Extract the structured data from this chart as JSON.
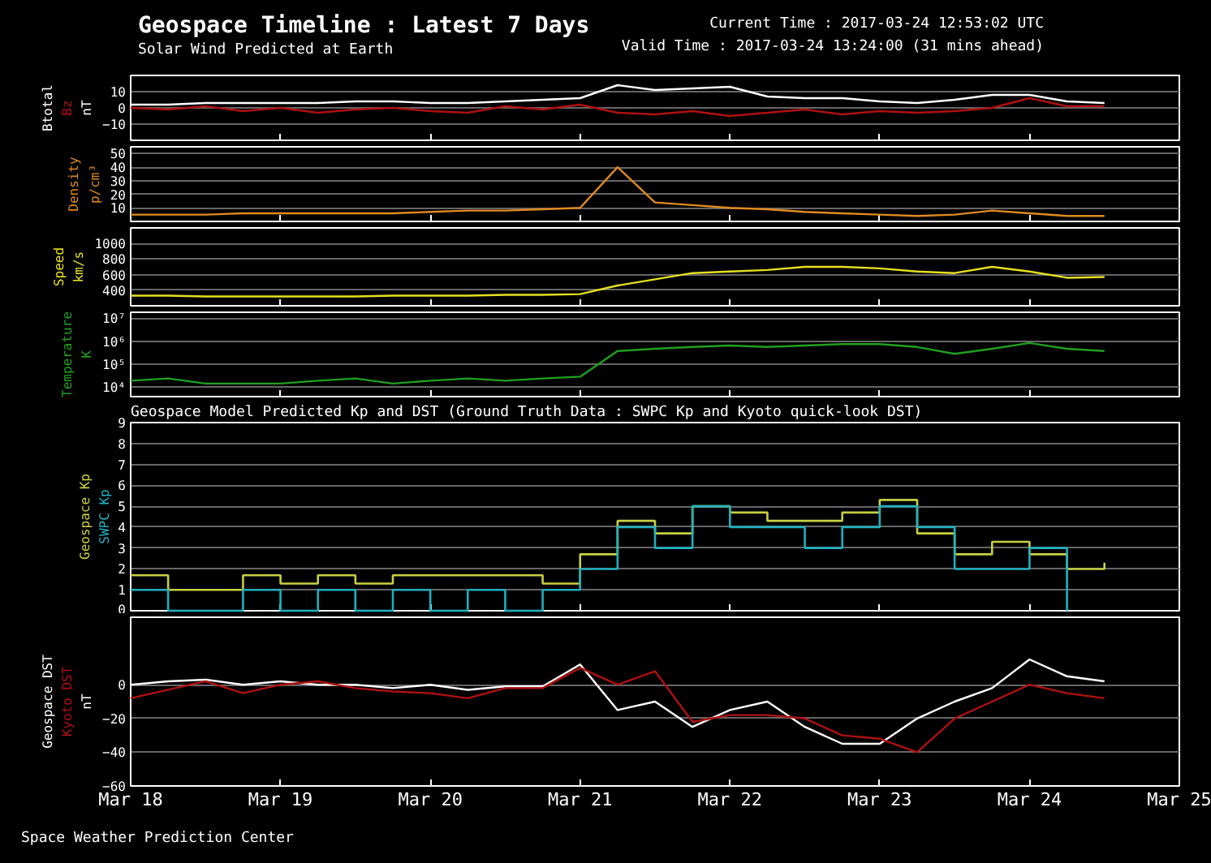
{
  "chart_data": [
    {
      "type": "line",
      "title": "Geospace Timeline : Latest 7 Days",
      "subtitle": "Solar Wind Predicted at Earth",
      "annotations": [
        "Current Time : 2017-03-24 12:53:02 UTC",
        "Valid Time : 2017-03-24 13:24:00 (31 mins ahead)"
      ],
      "ylabel": "nT",
      "tick_labels": "y",
      "grid": "y",
      "categories": [
        null,
        null,
        null,
        null,
        null,
        null,
        null,
        null,
        null,
        null,
        null,
        null,
        null,
        null,
        null,
        null,
        null,
        null,
        null,
        null,
        null,
        null,
        null,
        null,
        null,
        null,
        null
      ],
      "ylim": [
        -20,
        20
      ],
      "yticks": [
        -10,
        0,
        10
      ],
      "series": [
        {
          "name": "Btotal",
          "color": "#ffffff",
          "values": [
            2,
            2,
            3,
            3,
            3,
            3,
            4,
            4,
            3,
            3,
            4,
            5,
            6,
            14,
            11,
            12,
            13,
            7,
            6,
            6,
            4,
            3,
            5,
            8,
            8,
            4,
            3
          ]
        },
        {
          "name": "Bz",
          "color": "#b01010",
          "values": [
            0,
            -1,
            1,
            -2,
            0,
            -3,
            -1,
            0,
            -2,
            -3,
            1,
            -1,
            2,
            -3,
            -4,
            -2,
            -5,
            -3,
            -1,
            -4,
            -2,
            -3,
            -2,
            0,
            6,
            1,
            1
          ]
        }
      ]
    },
    {
      "type": "line",
      "ylabel": "p/cm³",
      "tick_labels": "y",
      "grid": "y",
      "categories": [
        null,
        null,
        null,
        null,
        null,
        null,
        null,
        null,
        null,
        null,
        null,
        null,
        null,
        null,
        null,
        null,
        null,
        null,
        null,
        null,
        null,
        null,
        null,
        null,
        null,
        null,
        null
      ],
      "ylim": [
        0,
        55
      ],
      "yticks": [
        10,
        20,
        30,
        40,
        50
      ],
      "series": [
        {
          "name": "Density",
          "color": "#e08a1e",
          "values": [
            5,
            5,
            5,
            6,
            6,
            6,
            6,
            6,
            7,
            8,
            8,
            9,
            10,
            40,
            14,
            12,
            10,
            9,
            7,
            6,
            5,
            4,
            5,
            8,
            6,
            4,
            4
          ]
        }
      ]
    },
    {
      "type": "line",
      "ylabel": "km/s",
      "tick_labels": "y",
      "grid": "y",
      "categories": [
        null,
        null,
        null,
        null,
        null,
        null,
        null,
        null,
        null,
        null,
        null,
        null,
        null,
        null,
        null,
        null,
        null,
        null,
        null,
        null,
        null,
        null,
        null,
        null,
        null,
        null,
        null
      ],
      "ylim": [
        200,
        1200
      ],
      "yticks": [
        400,
        600,
        800,
        1000
      ],
      "series": [
        {
          "name": "Speed",
          "color": "#e6e020",
          "values": [
            330,
            330,
            320,
            320,
            320,
            320,
            320,
            330,
            330,
            330,
            340,
            340,
            350,
            460,
            540,
            620,
            640,
            660,
            700,
            700,
            680,
            640,
            620,
            700,
            640,
            560,
            570
          ]
        }
      ]
    },
    {
      "type": "line",
      "ylabel": "K",
      "tick_labels": "y",
      "grid": "y",
      "log": true,
      "categories": [
        null,
        null,
        null,
        null,
        null,
        null,
        null,
        null,
        null,
        null,
        null,
        null,
        null,
        null,
        null,
        null,
        null,
        null,
        null,
        null,
        null,
        null,
        null,
        null,
        null,
        null,
        null
      ],
      "ylim": [
        4000,
        20000000
      ],
      "yticks": [
        {
          "value": 10000,
          "label": "10⁴"
        },
        {
          "value": 100000,
          "label": "10⁵"
        },
        {
          "value": 1000000,
          "label": "10⁶"
        },
        {
          "value": 10000000,
          "label": "10⁷"
        }
      ],
      "series": [
        {
          "name": "Temperature",
          "color": "#1fa01f",
          "values": [
            20000,
            25000,
            15000,
            15000,
            15000,
            20000,
            25000,
            15000,
            20000,
            25000,
            20000,
            25000,
            30000,
            400000,
            500000,
            600000,
            700000,
            600000,
            700000,
            800000,
            800000,
            600000,
            300000,
            500000,
            900000,
            500000,
            400000
          ]
        }
      ]
    },
    {
      "type": "step",
      "title": "Geospace Model Predicted Kp and DST (Ground Truth Data : SWPC Kp and Kyoto quick-look DST)",
      "tick_labels": "y",
      "grid": "y",
      "categories": [
        null,
        null,
        null,
        null,
        null,
        null,
        null,
        null,
        null,
        null,
        null,
        null,
        null,
        null,
        null,
        null,
        null,
        null,
        null,
        null,
        null,
        null,
        null,
        null,
        null,
        null,
        null
      ],
      "ylim": [
        0,
        9
      ],
      "yticks": [
        0,
        1,
        2,
        3,
        4,
        5,
        6,
        7,
        8,
        9
      ],
      "series": [
        {
          "name": "Geospace Kp",
          "color": "#c8d040",
          "values": [
            1.7,
            1,
            1,
            1.7,
            1.3,
            1.7,
            1.3,
            1.7,
            1.7,
            1.7,
            1.7,
            1.3,
            2.7,
            4.3,
            3.7,
            5,
            4.7,
            4.3,
            4.3,
            4.7,
            5.3,
            3.7,
            2.7,
            3.3,
            2.7,
            2,
            2.3
          ]
        },
        {
          "name": "SWPC Kp",
          "color": "#20b0c0",
          "values": [
            1,
            0,
            0,
            1,
            0,
            1,
            0,
            1,
            0,
            1,
            0,
            1,
            2,
            4,
            3,
            5,
            4,
            4,
            3,
            4,
            5,
            4,
            2,
            2,
            3,
            0,
            null
          ]
        }
      ]
    },
    {
      "type": "line",
      "ylabel": "nT",
      "grid": "y",
      "annotations": [
        "Space Weather Prediction Center"
      ],
      "x": [
        "2017-03-18T00:00",
        "2017-03-18T06:00",
        "2017-03-18T12:00",
        "2017-03-18T18:00",
        "2017-03-19T00:00",
        "2017-03-19T06:00",
        "2017-03-19T12:00",
        "2017-03-19T18:00",
        "2017-03-20T00:00",
        "2017-03-20T06:00",
        "2017-03-20T12:00",
        "2017-03-20T18:00",
        "2017-03-21T00:00",
        "2017-03-21T06:00",
        "2017-03-21T12:00",
        "2017-03-21T18:00",
        "2017-03-22T00:00",
        "2017-03-22T06:00",
        "2017-03-22T12:00",
        "2017-03-22T18:00",
        "2017-03-23T00:00",
        "2017-03-23T06:00",
        "2017-03-23T12:00",
        "2017-03-23T18:00",
        "2017-03-24T00:00",
        "2017-03-24T06:00",
        "2017-03-24T12:00"
      ],
      "xlim": [
        "2017-03-18",
        "2017-03-25"
      ],
      "xticks": [
        {
          "value": "2017-03-18",
          "label": "Mar 18"
        },
        {
          "value": "2017-03-19",
          "label": "Mar 19"
        },
        {
          "value": "2017-03-20",
          "label": "Mar 20"
        },
        {
          "value": "2017-03-21",
          "label": "Mar 21"
        },
        {
          "value": "2017-03-22",
          "label": "Mar 22"
        },
        {
          "value": "2017-03-23",
          "label": "Mar 23"
        },
        {
          "value": "2017-03-24",
          "label": "Mar 24"
        },
        {
          "value": "2017-03-25",
          "label": "Mar 25"
        }
      ],
      "ylim": [
        -60,
        40
      ],
      "yticks": [
        -60,
        -40,
        -20,
        0
      ],
      "series": [
        {
          "name": "Geospace DST",
          "color": "#ffffff",
          "values": [
            0,
            2,
            3,
            0,
            2,
            0,
            0,
            -2,
            0,
            -3,
            -1,
            -1,
            12,
            -15,
            -10,
            -25,
            -15,
            -10,
            -25,
            -35,
            -35,
            -20,
            -10,
            -2,
            15,
            5,
            2
          ]
        },
        {
          "name": "Kyoto DST",
          "color": "#b01010",
          "values": [
            -8,
            -3,
            2,
            -5,
            0,
            2,
            -2,
            -4,
            -5,
            -8,
            -2,
            -2,
            10,
            0,
            8,
            -22,
            -18,
            -18,
            -20,
            -30,
            -32,
            -40,
            -20,
            -10,
            0,
            -5,
            -8
          ]
        }
      ]
    }
  ]
}
